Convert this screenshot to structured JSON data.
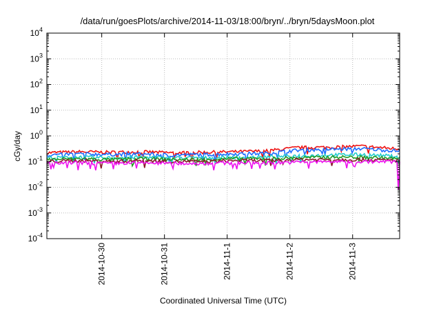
{
  "chart_data": {
    "type": "line",
    "title": "/data/run/goesPlots/archive/2014-11-03/18:00/bryn/../bryn/5daysMoon.plot",
    "xlabel": "Coordinated Universal Time (UTC)",
    "ylabel": "cGy/day",
    "yscale": "log",
    "ylim": [
      0.0001,
      10000
    ],
    "xlim": [
      "2014-10-29T03:00",
      "2014-11-03T18:00"
    ],
    "grid": true,
    "legend": "none",
    "y_ticks": [
      {
        "base": "10",
        "exp": "-4",
        "value": 0.0001
      },
      {
        "base": "10",
        "exp": "-3",
        "value": 0.001
      },
      {
        "base": "10",
        "exp": "-2",
        "value": 0.01
      },
      {
        "base": "10",
        "exp": "-1",
        "value": 0.1
      },
      {
        "base": "10",
        "exp": "0",
        "value": 1
      },
      {
        "base": "10",
        "exp": "1",
        "value": 10
      },
      {
        "base": "10",
        "exp": "2",
        "value": 100
      },
      {
        "base": "10",
        "exp": "3",
        "value": 1000
      },
      {
        "base": "10",
        "exp": "4",
        "value": 10000
      }
    ],
    "x_ticks": [
      {
        "label": "2014-10-30",
        "value": "2014-10-30T00:00"
      },
      {
        "label": "2014-10-31",
        "value": "2014-10-31T00:00"
      },
      {
        "label": "2014-11-1",
        "value": "2014-11-01T00:00"
      },
      {
        "label": "2014-11-2",
        "value": "2014-11-02T00:00"
      },
      {
        "label": "2014-11-3",
        "value": "2014-11-03T00:00"
      }
    ],
    "x": [
      "2014-10-29T03:00",
      "2014-10-29T15:00",
      "2014-10-30T03:00",
      "2014-10-30T15:00",
      "2014-10-31T03:00",
      "2014-10-31T15:00",
      "2014-11-01T03:00",
      "2014-11-01T15:00",
      "2014-11-02T03:00",
      "2014-11-02T15:00",
      "2014-11-03T03:00",
      "2014-11-03T18:00"
    ],
    "series": [
      {
        "color": "#ee1111",
        "values": [
          0.22,
          0.24,
          0.23,
          0.24,
          0.22,
          0.23,
          0.24,
          0.26,
          0.35,
          0.36,
          0.4,
          0.31
        ]
      },
      {
        "color": "#1e6cff",
        "values": [
          0.18,
          0.2,
          0.19,
          0.2,
          0.18,
          0.19,
          0.2,
          0.21,
          0.28,
          0.3,
          0.32,
          0.26
        ]
      },
      {
        "color": "#22cccc",
        "values": [
          0.14,
          0.15,
          0.14,
          0.15,
          0.14,
          0.14,
          0.15,
          0.15,
          0.17,
          0.18,
          0.19,
          0.16
        ]
      },
      {
        "color": "#229922",
        "values": [
          0.12,
          0.13,
          0.12,
          0.13,
          0.12,
          0.12,
          0.13,
          0.13,
          0.14,
          0.15,
          0.15,
          0.13
        ]
      },
      {
        "color": "#8b1a2a",
        "values": [
          0.1,
          0.11,
          0.1,
          0.11,
          0.1,
          0.1,
          0.11,
          0.11,
          0.12,
          0.12,
          0.12,
          0.11
        ]
      },
      {
        "color": "#ee11ee",
        "values": [
          0.085,
          0.09,
          0.085,
          0.09,
          0.085,
          0.085,
          0.09,
          0.09,
          0.095,
          0.1,
          0.1,
          0.007
        ]
      }
    ]
  }
}
